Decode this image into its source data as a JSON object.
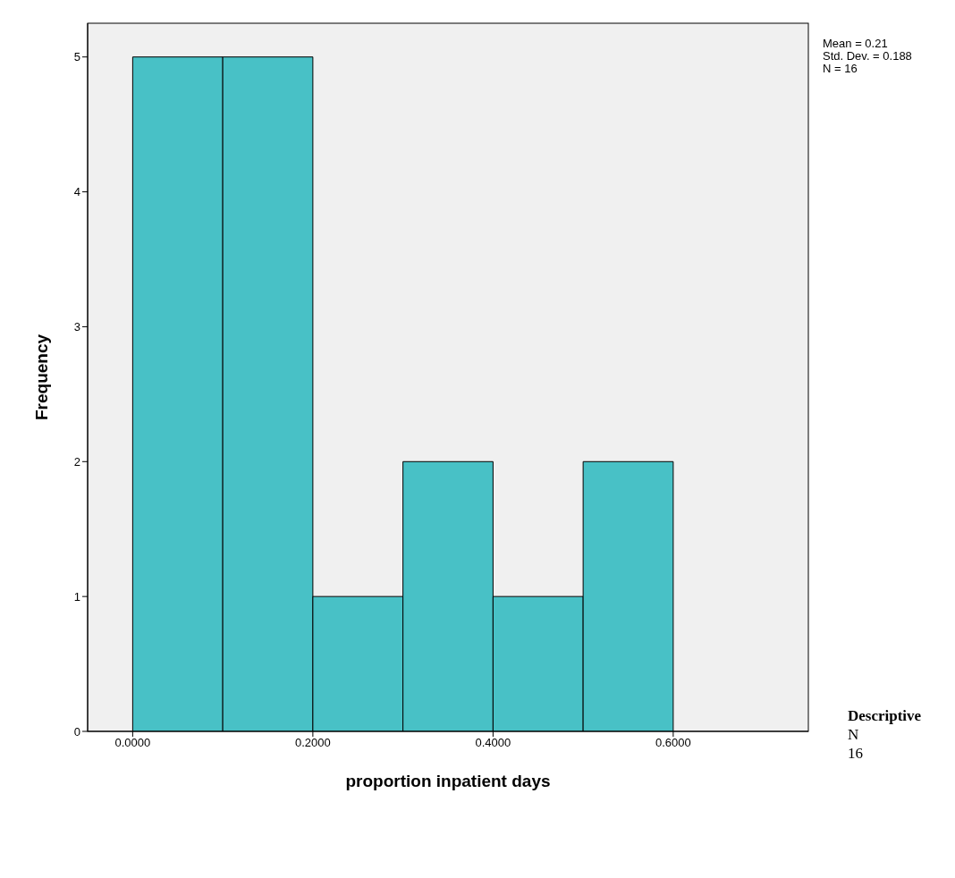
{
  "chart_data": {
    "type": "histogram",
    "xlabel": "proportion inpatient days",
    "ylabel": "Frequency",
    "bins": [
      0,
      0.1,
      0.2,
      0.3,
      0.4,
      0.5,
      0.6
    ],
    "values": [
      5,
      5,
      1,
      2,
      1,
      2
    ],
    "color": "#48c1c6",
    "xlim": [
      -0.05,
      0.75
    ],
    "xticks": [
      {
        "value": 0,
        "label": "0.0000"
      },
      {
        "value": 0.2,
        "label": "0.2000"
      },
      {
        "value": 0.4,
        "label": "0.4000"
      },
      {
        "value": 0.6,
        "label": "0.6000"
      }
    ],
    "ylim": [
      0,
      5.25
    ],
    "yticks": [
      0,
      1,
      2,
      3,
      4,
      5
    ],
    "annotations": [
      "Mean = 0.21",
      "Std. Dev. = 0.188",
      "N = 16",
      "Descriptive",
      "N",
      "16"
    ]
  }
}
